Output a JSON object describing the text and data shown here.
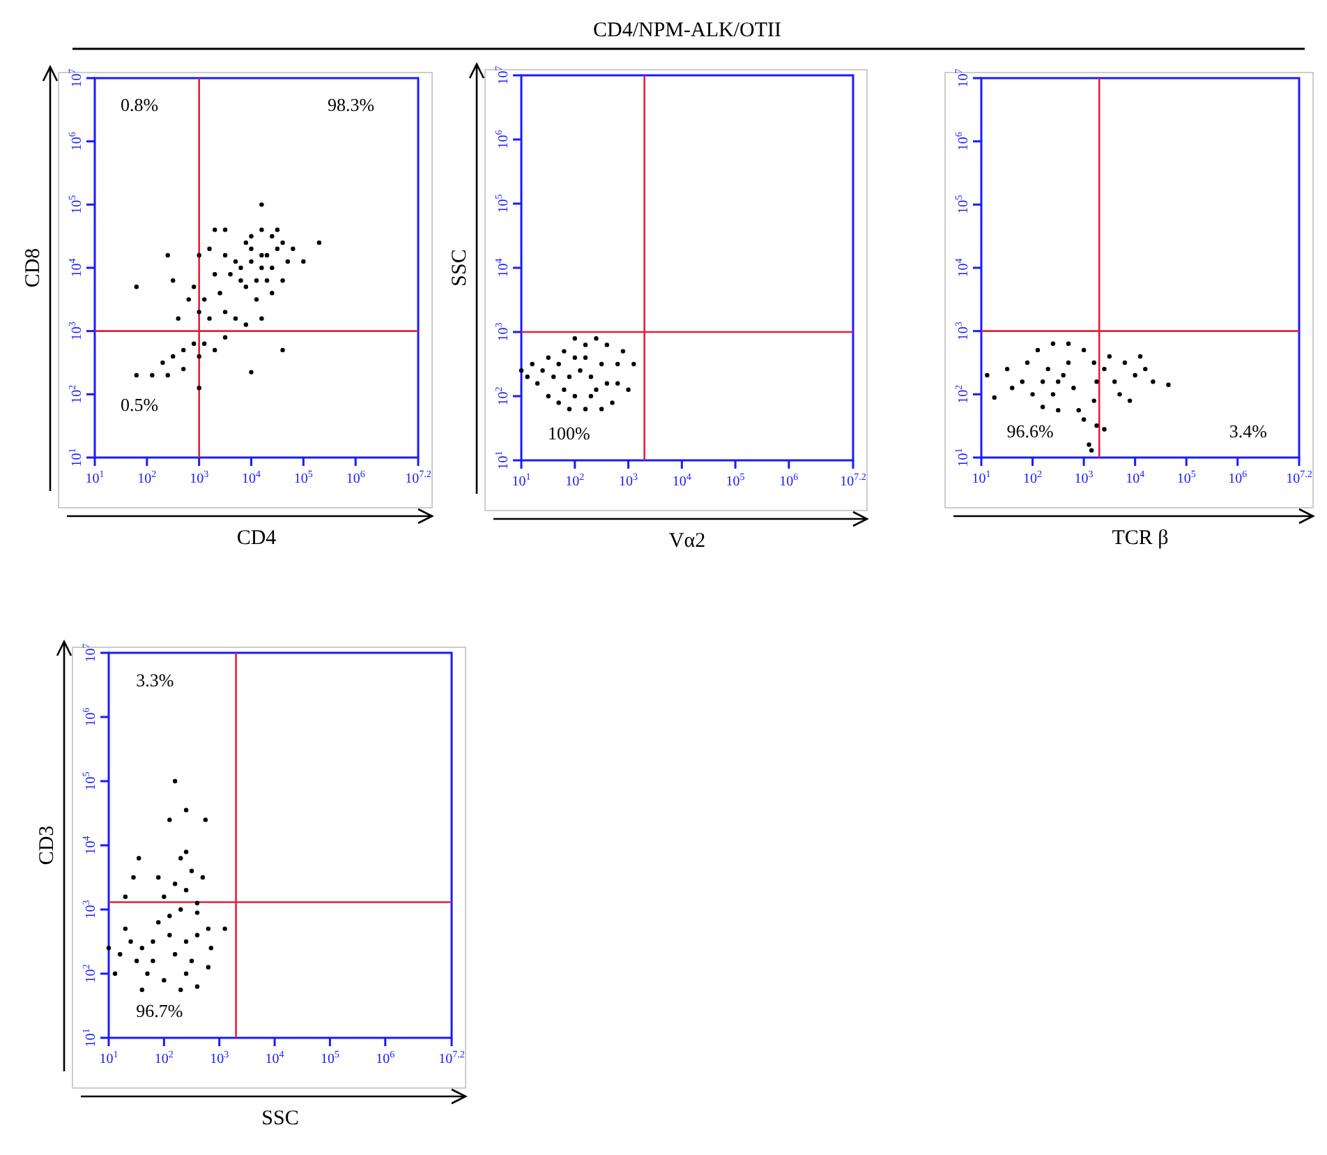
{
  "chart_data": [
    {
      "type": "scatter",
      "xlabel": "CD4",
      "ylabel": "CD8",
      "log": "xy",
      "marker": "circle",
      "xlim": [
        10,
        15848932
      ],
      "ylim": [
        10,
        10000000
      ],
      "xticks": [
        {
          "value": 10,
          "label": "10$^{1}$"
        },
        {
          "value": 100,
          "label": "10$^{2}$"
        },
        {
          "value": 1000,
          "label": "10$^{3}$"
        },
        {
          "value": 10000,
          "label": "10$^{4}$"
        },
        {
          "value": 100000,
          "label": "10$^{5}$"
        },
        {
          "value": 1000000,
          "label": "10$^{6}$"
        },
        {
          "value": 15848932,
          "label": "10$^{7.2}$"
        }
      ],
      "yticks": [
        {
          "value": 10,
          "label": "10$^{1}$"
        },
        {
          "value": 100,
          "label": "10$^{2}$"
        },
        {
          "value": 1000,
          "label": "10$^{3}$"
        },
        {
          "value": 10000,
          "label": "10$^{4}$"
        },
        {
          "value": 100000,
          "label": "10$^{5}$"
        },
        {
          "value": 1000000,
          "label": "10$^{6}$"
        },
        {
          "value": 10000000,
          "label": "10$^{7}$"
        }
      ],
      "ref_lines": [
        {
          "axis": "x",
          "value": 1000,
          "color": "#e0203a"
        },
        {
          "axis": "y",
          "value": 1000,
          "color": "#e0203a"
        }
      ],
      "annotations": [
        "0.8%",
        "98.3%",
        "0.5%"
      ],
      "series": [
        {
          "color": "#000000",
          "x": [
            15800,
            6300,
            7900,
            10000,
            15800,
            25000,
            40000,
            50000,
            40000,
            25000,
            12600,
            7900,
            5000,
            10000,
            20000,
            25000,
            12600,
            20000,
            10000,
            31600,
            6300,
            15800,
            31600,
            3980,
            3160,
            2510,
            2000,
            1580,
            1260,
            1000,
            794,
            1000,
            1580,
            3160,
            5000,
            7900,
            15800,
            3160,
            2000,
            63000,
            631,
            398,
            316,
            794,
            1260,
            2000,
            3160,
            501,
            316,
            200,
            126,
            251,
            501,
            1000,
            1000,
            63,
            63,
            10000,
            40000,
            15800,
            200000,
            100000,
            251
          ],
          "values": [
            15800,
            10000,
            25000,
            31600,
            40000,
            31600,
            25000,
            12600,
            6300,
            3980,
            3160,
            5000,
            12600,
            12600,
            15800,
            10000,
            6300,
            6300,
            20000,
            20000,
            6300,
            10000,
            40000,
            7900,
            15800,
            3980,
            7900,
            20000,
            3160,
            15800,
            5000,
            2000,
            1580,
            2000,
            1580,
            1260,
            1580,
            40000,
            40000,
            20000,
            3160,
            1580,
            6300,
            631,
            631,
            501,
            794,
            501,
            398,
            316,
            200,
            200,
            251,
            398,
            126,
            200,
            5000,
            224,
            501,
            100000,
            25000,
            12600,
            15800
          ]
        }
      ]
    },
    {
      "type": "scatter",
      "title": "CD4/NPM-ALK/OTII",
      "xlabel": "Vα2",
      "ylabel": "SSC",
      "log": "xy",
      "marker": "circle",
      "xlim": [
        10,
        15848932
      ],
      "ylim": [
        10,
        10000000
      ],
      "xticks": [
        {
          "value": 10,
          "label": "10$^{1}$"
        },
        {
          "value": 100,
          "label": "10$^{2}$"
        },
        {
          "value": 1000,
          "label": "10$^{3}$"
        },
        {
          "value": 10000,
          "label": "10$^{4}$"
        },
        {
          "value": 100000,
          "label": "10$^{5}$"
        },
        {
          "value": 1000000,
          "label": "10$^{6}$"
        },
        {
          "value": 15848932,
          "label": "10$^{7.2}$"
        }
      ],
      "yticks": [
        {
          "value": 10,
          "label": "10$^{1}$"
        },
        {
          "value": 100,
          "label": "10$^{2}$"
        },
        {
          "value": 1000,
          "label": "10$^{3}$"
        },
        {
          "value": 10000,
          "label": "10$^{4}$"
        },
        {
          "value": 100000,
          "label": "10$^{5}$"
        },
        {
          "value": 1000000,
          "label": "10$^{6}$"
        },
        {
          "value": 10000000,
          "label": "10$^{7}$"
        }
      ],
      "ref_lines": [
        {
          "axis": "x",
          "value": 2000,
          "color": "#e0203a"
        },
        {
          "axis": "y",
          "value": 1000,
          "color": "#e0203a"
        }
      ],
      "annotations": [
        "100%"
      ],
      "series": [
        {
          "color": "#000000",
          "x": [
            200,
            79,
            100,
            158,
            251,
            398,
            631,
            631,
            501,
            316,
            158,
            100,
            200,
            316,
            126,
            398,
            251,
            158,
            63,
            50,
            40,
            32,
            25,
            20,
            16,
            13,
            10,
            32,
            50,
            79,
            794,
            1260,
            1000,
            100,
            63
          ],
          "values": [
            200,
            200,
            398,
            631,
            794,
            631,
            316,
            158,
            79,
            63,
            63,
            100,
            100,
            316,
            251,
            158,
            126,
            398,
            126,
            316,
            200,
            100,
            251,
            158,
            316,
            200,
            251,
            398,
            79,
            63,
            501,
            316,
            126,
            794,
            501
          ]
        }
      ]
    },
    {
      "type": "scatter",
      "xlabel": "TCR β",
      "log": "xy",
      "marker": "circle",
      "xlim": [
        10,
        15848932
      ],
      "ylim": [
        10,
        10000000
      ],
      "xticks": [
        {
          "value": 10,
          "label": "10$^{1}$"
        },
        {
          "value": 100,
          "label": "10$^{2}$"
        },
        {
          "value": 1000,
          "label": "10$^{3}$"
        },
        {
          "value": 10000,
          "label": "10$^{4}$"
        },
        {
          "value": 100000,
          "label": "10$^{5}$"
        },
        {
          "value": 1000000,
          "label": "10$^{6}$"
        },
        {
          "value": 15848932,
          "label": "10$^{7.2}$"
        }
      ],
      "yticks": [
        {
          "value": 10,
          "label": "10$^{1}$"
        },
        {
          "value": 100,
          "label": "10$^{2}$"
        },
        {
          "value": 1000,
          "label": "10$^{3}$"
        },
        {
          "value": 10000,
          "label": "10$^{4}$"
        },
        {
          "value": 100000,
          "label": "10$^{5}$"
        },
        {
          "value": 1000000,
          "label": "10$^{6}$"
        },
        {
          "value": 10000000,
          "label": "10$^{7}$"
        }
      ],
      "ref_lines": [
        {
          "axis": "x",
          "value": 2000,
          "color": "#e0203a"
        },
        {
          "axis": "y",
          "value": 1000,
          "color": "#e0203a"
        }
      ],
      "annotations": [
        "96.6%",
        "3.4%"
      ],
      "series": [
        {
          "color": "#000000",
          "x": [
            316,
            63,
            79,
            126,
            251,
            501,
            1000,
            1580,
            1780,
            1580,
            794,
            316,
            158,
            100,
            200,
            501,
            631,
            251,
            398,
            158,
            2510,
            3980,
            6300,
            10000,
            15800,
            22400,
            5000,
            7900,
            12600,
            3160,
            44700,
            1780,
            1260,
            1410,
            2510,
            18,
            13,
            32,
            40,
            1000
          ],
          "values": [
            158,
            158,
            316,
            501,
            631,
            631,
            501,
            316,
            158,
            79,
            56,
            56,
            63,
            100,
            251,
            316,
            126,
            100,
            200,
            158,
            251,
            158,
            316,
            200,
            251,
            158,
            100,
            79,
            398,
            398,
            141,
            32,
            16,
            13,
            28,
            89,
            200,
            251,
            126,
            40
          ]
        }
      ]
    },
    {
      "type": "scatter",
      "xlabel": "SSC",
      "ylabel": "CD3",
      "log": "xy",
      "marker": "circle",
      "xlim": [
        10,
        15848932
      ],
      "ylim": [
        10,
        10000000
      ],
      "xticks": [
        {
          "value": 10,
          "label": "10$^{1}$"
        },
        {
          "value": 100,
          "label": "10$^{2}$"
        },
        {
          "value": 1000,
          "label": "10$^{3}$"
        },
        {
          "value": 10000,
          "label": "10$^{4}$"
        },
        {
          "value": 100000,
          "label": "10$^{5}$"
        },
        {
          "value": 1000000,
          "label": "10$^{6}$"
        },
        {
          "value": 15848932,
          "label": "10$^{7.2}$"
        }
      ],
      "yticks": [
        {
          "value": 10,
          "label": "10$^{1}$"
        },
        {
          "value": 100,
          "label": "10$^{2}$"
        },
        {
          "value": 1000,
          "label": "10$^{3}$"
        },
        {
          "value": 10000,
          "label": "10$^{4}$"
        },
        {
          "value": 100000,
          "label": "10$^{5}$"
        },
        {
          "value": 1000000,
          "label": "10$^{6}$"
        },
        {
          "value": 10000000,
          "label": "10$^{7}$"
        }
      ],
      "ref_lines": [
        {
          "axis": "x",
          "value": 2000,
          "color": "#e0203a"
        },
        {
          "axis": "y",
          "value": 1300,
          "color": "#e0203a"
        }
      ],
      "annotations": [
        "3.3%",
        "96.7%"
      ],
      "series": [
        {
          "color": "#000000",
          "x": [
            251,
            63,
            79,
            126,
            200,
            398,
            631,
            708,
            631,
            398,
            200,
            100,
            63,
            158,
            316,
            398,
            126,
            251,
            40,
            25,
            16,
            10,
            20,
            32,
            13,
            50,
            100,
            158,
            251,
            316,
            200,
            398,
            79,
            501,
            251,
            158,
            251,
            126,
            562,
            35,
            28,
            20,
            1260,
            40
          ],
          "values": [
            316,
            316,
            631,
            794,
            1000,
            891,
            501,
            251,
            126,
            63,
            56,
            79,
            158,
            200,
            158,
            398,
            398,
            100,
            251,
            316,
            200,
            251,
            501,
            158,
            100,
            100,
            1580,
            2510,
            2000,
            3980,
            6300,
            1260,
            3160,
            3160,
            7900,
            100000,
            35500,
            25000,
            25000,
            6300,
            3160,
            1580,
            501,
            56
          ]
        }
      ]
    }
  ]
}
